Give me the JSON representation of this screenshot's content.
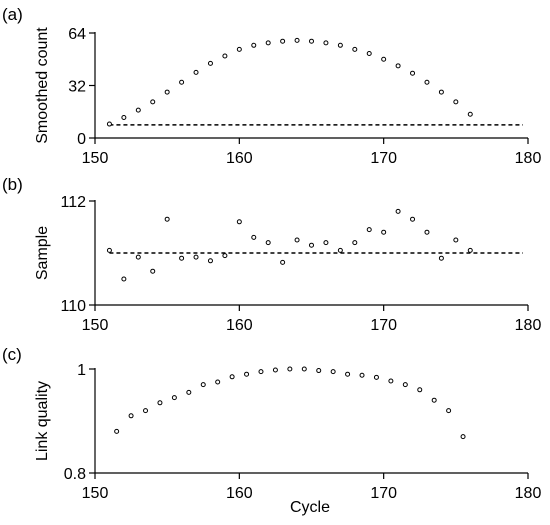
{
  "x_axis": {
    "label": "Cycle",
    "ticks": [
      "150",
      "160",
      "170",
      "180"
    ]
  },
  "chart_data": [
    {
      "type": "scatter",
      "panel_label": "(a)",
      "xlabel": "",
      "ylabel": "Smoothed count",
      "xlim": [
        150,
        180
      ],
      "ylim": [
        0,
        64
      ],
      "x_ticks": [
        150,
        160,
        170,
        180
      ],
      "y_ticks": [
        0,
        32,
        64
      ],
      "y_tick_labels": [
        "0",
        "32",
        "64"
      ],
      "reference_line": {
        "y": 8,
        "style": "dashed"
      },
      "x": [
        151,
        152,
        153,
        154,
        155,
        156,
        157,
        158,
        159,
        160,
        161,
        162,
        163,
        164,
        165,
        166,
        167,
        168,
        169,
        170,
        171,
        172,
        173,
        174,
        175,
        176
      ],
      "values": [
        8.5,
        12.5,
        17,
        22,
        28,
        34,
        40,
        45.5,
        50,
        54,
        56.5,
        58,
        59,
        59.5,
        59,
        58,
        56.5,
        54,
        51.5,
        48,
        44,
        39.5,
        34,
        28,
        22,
        14.5
      ]
    },
    {
      "type": "scatter",
      "panel_label": "(b)",
      "xlabel": "",
      "ylabel": "Sample",
      "xlim": [
        150,
        180
      ],
      "ylim": [
        110,
        112
      ],
      "x_ticks": [
        150,
        160,
        170,
        180
      ],
      "y_ticks": [
        110,
        112
      ],
      "y_tick_labels": [
        "110",
        "112"
      ],
      "reference_line": {
        "y": 111.0,
        "style": "dashed"
      },
      "x": [
        151,
        152,
        153,
        154,
        155,
        156,
        157,
        158,
        159,
        160,
        161,
        162,
        163,
        164,
        165,
        166,
        167,
        168,
        169,
        170,
        171,
        172,
        173,
        174,
        175,
        176
      ],
      "values": [
        111.05,
        110.5,
        110.92,
        110.65,
        111.65,
        110.9,
        110.92,
        110.85,
        110.95,
        111.6,
        111.3,
        111.2,
        110.82,
        111.25,
        111.15,
        111.2,
        111.05,
        111.2,
        111.45,
        111.4,
        111.8,
        111.65,
        111.4,
        110.9,
        111.25,
        111.05
      ]
    },
    {
      "type": "scatter",
      "panel_label": "(c)",
      "xlabel": "Cycle",
      "ylabel": "Link quality",
      "xlim": [
        150,
        180
      ],
      "ylim": [
        0.8,
        1.0
      ],
      "x_ticks": [
        150,
        160,
        170,
        180
      ],
      "y_ticks": [
        0.8,
        1.0
      ],
      "y_tick_labels": [
        "0.8",
        "1"
      ],
      "x": [
        151.5,
        152.5,
        153.5,
        154.5,
        155.5,
        156.5,
        157.5,
        158.5,
        159.5,
        160.5,
        161.5,
        162.5,
        163.5,
        164.5,
        165.5,
        166.5,
        167.5,
        168.5,
        169.5,
        170.5,
        171.5,
        172.5,
        173.5,
        174.5,
        175.5
      ],
      "values": [
        0.88,
        0.91,
        0.92,
        0.935,
        0.945,
        0.955,
        0.97,
        0.975,
        0.985,
        0.99,
        0.995,
        0.998,
        1.0,
        1.0,
        0.997,
        0.995,
        0.99,
        0.988,
        0.984,
        0.977,
        0.97,
        0.96,
        0.94,
        0.92,
        0.87
      ]
    }
  ]
}
